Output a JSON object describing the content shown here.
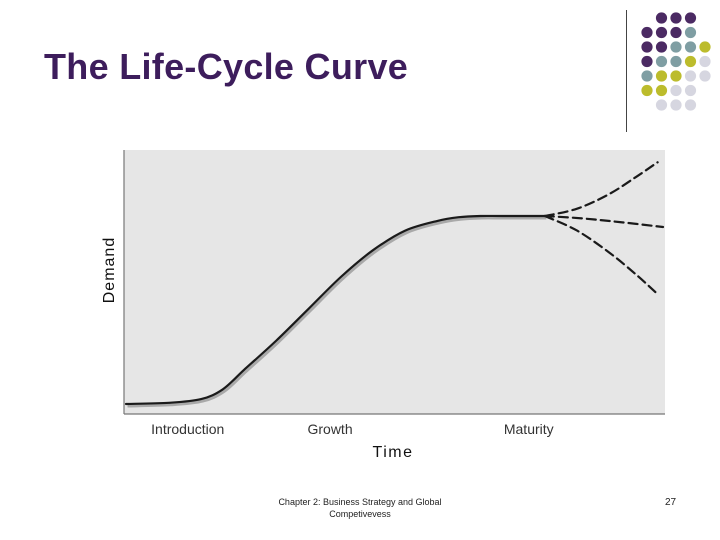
{
  "slide": {
    "title": "The Life-Cycle Curve",
    "footer": "Chapter 2: Business Strategy and Global Competivevess",
    "page_number": "27",
    "colors": {
      "title": "#3d1d5c",
      "dot_purple": "#4b2a63",
      "dot_teal": "#7f9ea3",
      "dot_olive": "#bcbc2c",
      "dot_gray": "#d6d6e0"
    }
  },
  "chart_data": {
    "type": "line",
    "title": "",
    "xlabel": "Time",
    "ylabel": "Demand",
    "xlim": [
      0,
      100
    ],
    "ylim": [
      0,
      100
    ],
    "grid": false,
    "background": "#e6e6e6",
    "stages": [
      {
        "label": "Introduction",
        "x": 11.5
      },
      {
        "label": "Growth",
        "x": 38
      },
      {
        "label": "Maturity",
        "x": 75
      }
    ],
    "series": [
      {
        "name": "life-cycle",
        "style": "solid",
        "x": [
          0,
          8,
          14,
          18,
          22,
          28,
          34,
          40,
          46,
          52,
          58,
          62,
          66,
          70,
          78
        ],
        "y": [
          4,
          4.5,
          6,
          10,
          18,
          30,
          43,
          56,
          67,
          75,
          79,
          80.5,
          81,
          81,
          81
        ]
      },
      {
        "name": "branch-up",
        "style": "dashed",
        "x": [
          78,
          84,
          90,
          95,
          99
        ],
        "y": [
          81,
          84,
          90,
          97,
          103
        ]
      },
      {
        "name": "branch-flat",
        "style": "dashed",
        "x": [
          78,
          85,
          92,
          100
        ],
        "y": [
          81,
          80,
          78.5,
          76.5
        ]
      },
      {
        "name": "branch-down",
        "style": "dashed",
        "x": [
          78,
          84,
          90,
          95,
          99
        ],
        "y": [
          81,
          75,
          66,
          57,
          49
        ]
      }
    ]
  }
}
